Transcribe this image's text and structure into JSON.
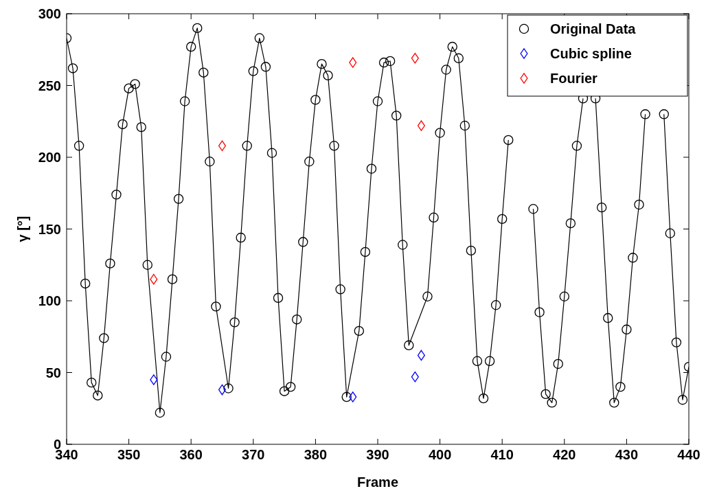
{
  "chart_data": {
    "type": "line",
    "xlabel": "Frame",
    "ylabel": "γ [°]",
    "xlim": [
      340,
      440
    ],
    "ylim": [
      0,
      300
    ],
    "xticks": [
      340,
      350,
      360,
      370,
      380,
      390,
      400,
      410,
      420,
      430,
      440
    ],
    "yticks": [
      0,
      50,
      100,
      150,
      200,
      250,
      300
    ],
    "legend": "top right",
    "grid": false,
    "series": [
      {
        "name": "Original Data",
        "marker": "circle",
        "color": "#000000",
        "x": [
          340,
          341,
          342,
          343,
          344,
          345,
          346,
          347,
          348,
          349,
          350,
          351,
          352,
          353,
          355,
          356,
          357,
          358,
          359,
          360,
          361,
          362,
          363,
          364,
          366,
          367,
          368,
          369,
          370,
          371,
          372,
          373,
          374,
          375,
          376,
          377,
          378,
          379,
          380,
          381,
          382,
          383,
          384,
          385,
          387,
          388,
          389,
          390,
          391,
          392,
          393,
          394,
          395,
          398,
          399,
          400,
          401,
          402,
          403,
          404,
          405,
          406,
          407,
          408,
          409,
          410,
          411,
          412,
          413,
          414,
          415,
          416,
          417,
          418,
          419,
          420,
          421,
          422,
          423,
          424,
          425,
          426,
          427,
          428,
          429,
          430,
          431,
          432,
          433,
          434,
          435,
          436,
          437,
          438,
          439,
          440
        ],
        "values": [
          283,
          262,
          208,
          112,
          43,
          34,
          74,
          126,
          174,
          223,
          248,
          251,
          221,
          125,
          22,
          61,
          115,
          171,
          239,
          277,
          290,
          259,
          197,
          96,
          39,
          85,
          144,
          208,
          260,
          283,
          263,
          203,
          102,
          37,
          40,
          87,
          141,
          197,
          240,
          265,
          257,
          208,
          108,
          33,
          79,
          134,
          192,
          239,
          266,
          267,
          229,
          139,
          69,
          103,
          158,
          217,
          261,
          277,
          269,
          222,
          135,
          58,
          32,
          58,
          97,
          157,
          212,
          null,
          null,
          null,
          164,
          92,
          35,
          29,
          56,
          103,
          154,
          208,
          241,
          null,
          241,
          165,
          88,
          29,
          40,
          80,
          130,
          167,
          230,
          null,
          null,
          230,
          147,
          71,
          31,
          54
        ]
      },
      {
        "name": "Cubic spline",
        "type": "scatter",
        "marker": "diamond",
        "color": "#0000ff",
        "x": [
          354,
          365,
          386,
          396,
          397
        ],
        "values": [
          45,
          38,
          33,
          47,
          62
        ]
      },
      {
        "name": "Fourier",
        "type": "scatter",
        "marker": "diamond",
        "color": "#ff0000",
        "x": [
          354,
          365,
          386,
          396,
          397
        ],
        "values": [
          115,
          208,
          266,
          269,
          222
        ]
      }
    ]
  }
}
